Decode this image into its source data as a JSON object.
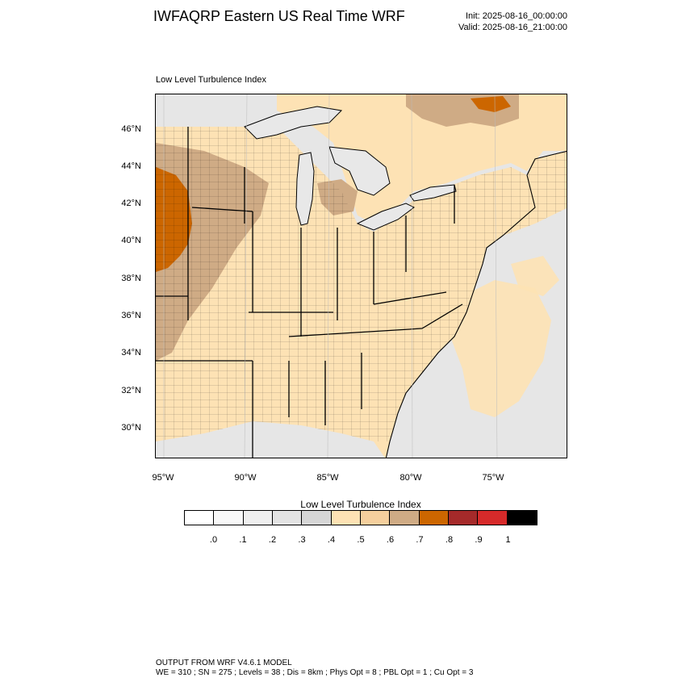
{
  "header": {
    "title": "IWFAQRP Eastern US Real Time WRF",
    "init": "Init: 2025-08-16_00:00:00",
    "valid": "Valid: 2025-08-16_21:00:00"
  },
  "map": {
    "subtitle": "Low Level Turbulence Index",
    "lon_range": [
      -95.5,
      -71.0
    ],
    "lat_range": [
      28.5,
      47.8
    ],
    "lat_ticks": [
      "46°N",
      "44°N",
      "42°N",
      "40°N",
      "38°N",
      "36°N",
      "34°N",
      "32°N",
      "30°N"
    ],
    "lon_ticks": [
      "95°W",
      "90°W",
      "85°W",
      "80°W",
      "75°W"
    ],
    "colors": {
      "land_base": "#fde2b4",
      "water": "#e6e6e6",
      "lake": "#e8e8e8",
      "high_turb": "#cc6600",
      "mid_turb": "#cfab85",
      "light_turb": "#f5cf9d"
    }
  },
  "colorbar": {
    "title": "Low Level Turbulence Index",
    "colors": [
      "#ffffff",
      "#f8f8f8",
      "#efefef",
      "#e3e3e3",
      "#d6d6d6",
      "#fde2b4",
      "#f5cf9d",
      "#cfab85",
      "#cc6600",
      "#a52a2a",
      "#d62a2a",
      "#000000"
    ],
    "labels": [
      ".0",
      ".1",
      ".2",
      ".3",
      ".4",
      ".5",
      ".6",
      ".7",
      ".8",
      ".9",
      "1"
    ]
  },
  "footer": {
    "line1": "OUTPUT FROM WRF V4.6.1 MODEL",
    "line2": "WE = 310 ; SN = 275 ; Levels = 38 ; Dis = 8km ; Phys Opt = 8 ; PBL Opt = 1 ; Cu Opt = 3"
  }
}
